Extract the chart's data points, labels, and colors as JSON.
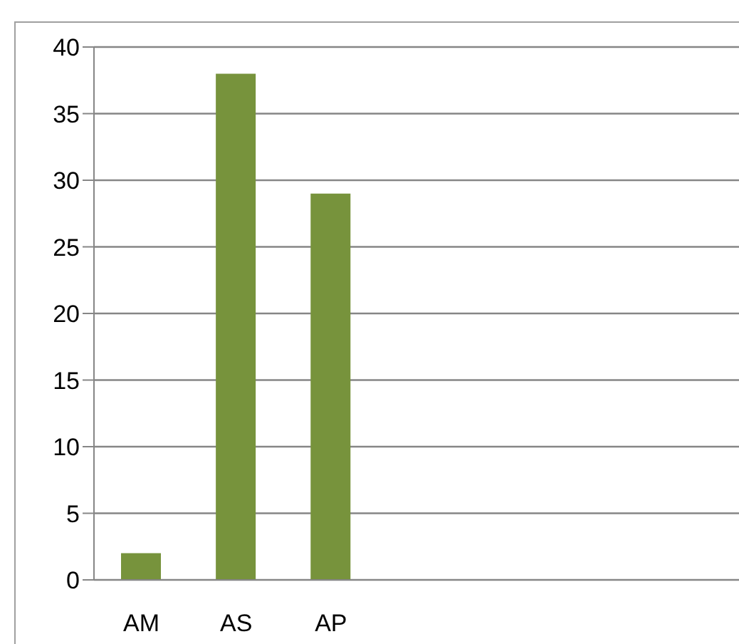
{
  "chart_data": {
    "type": "bar",
    "categories": [
      "AM",
      "AS",
      "AP",
      null,
      null,
      null,
      null
    ],
    "values": [
      2,
      38,
      29,
      null,
      null,
      null,
      null
    ],
    "color": "#77933c",
    "ylim": [
      0,
      40
    ],
    "yticks": [
      0,
      5,
      10,
      15,
      20,
      25,
      30,
      35,
      40
    ],
    "grid": "y"
  }
}
